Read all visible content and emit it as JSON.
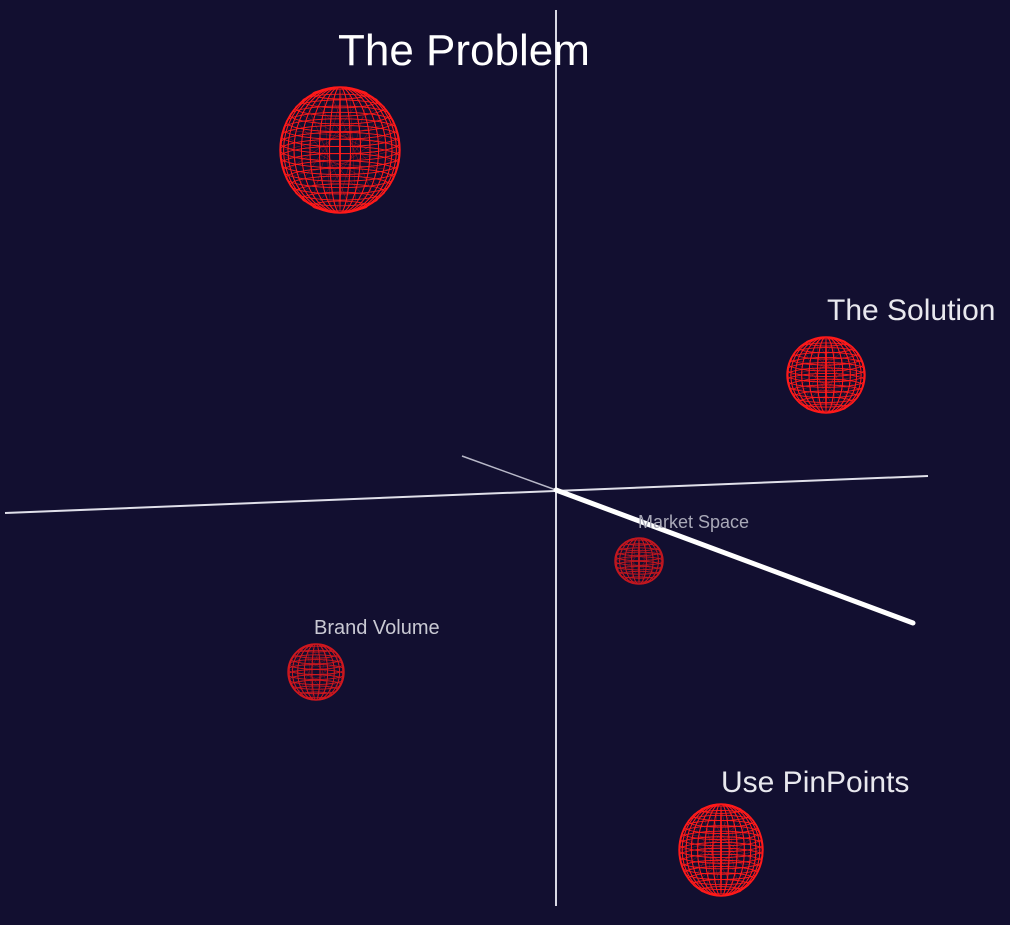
{
  "scene": {
    "background": "#120f30",
    "axis_color": "#e6e6f0",
    "wire_color": "#ff1a1a",
    "dim_wire_color": "#c8141a"
  },
  "labels": {
    "problem": "The Problem",
    "solution": "The Solution",
    "pinpoints": "Use PinPoints",
    "brand_volume": "Brand Volume",
    "market_space": "Market Space"
  }
}
